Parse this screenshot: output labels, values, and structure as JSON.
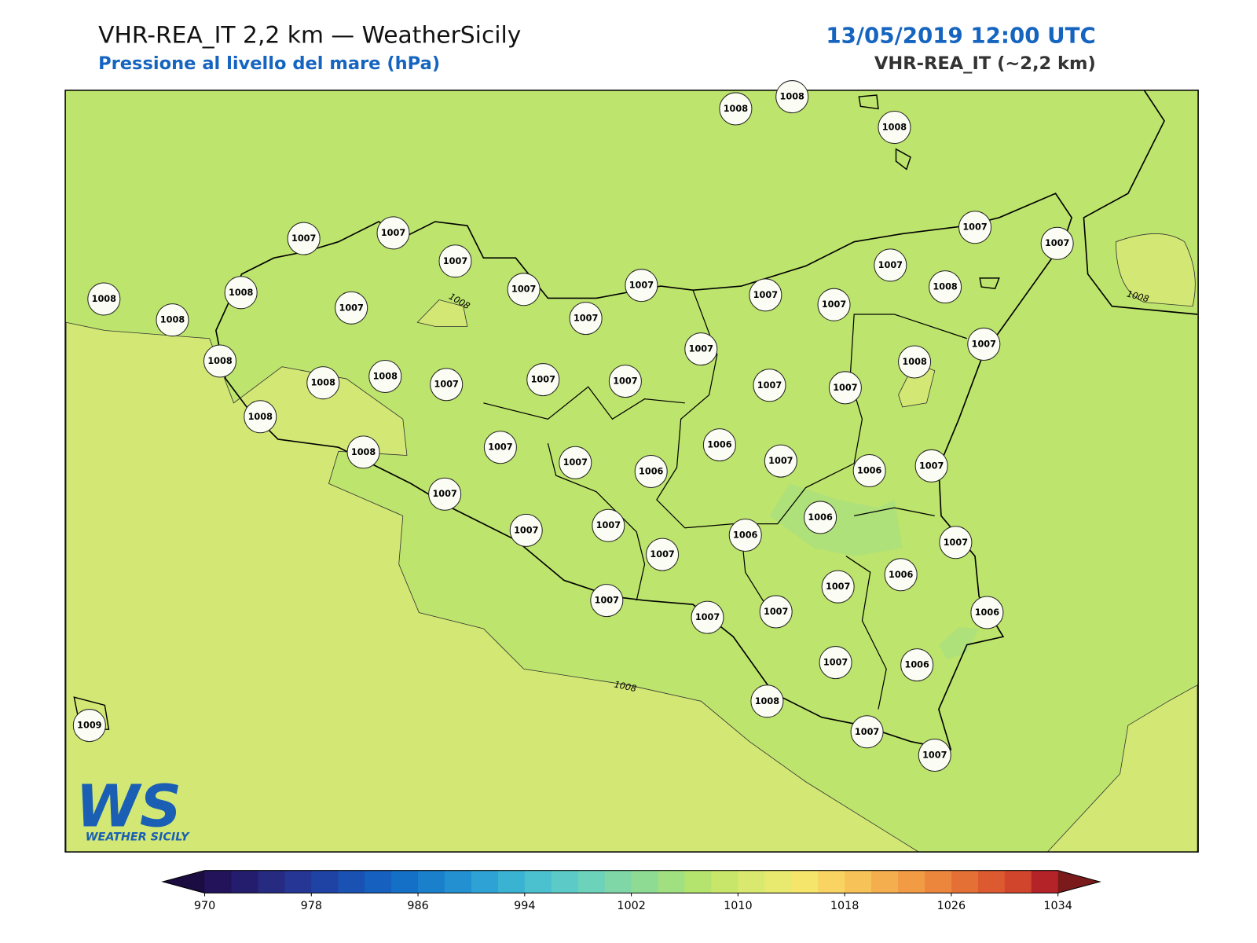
{
  "header": {
    "title": "VHR-REA_IT 2,2 km — WeatherSicily",
    "subtitle": "Pressione al livello del mare (hPa)",
    "date": "13/05/2019 12:00 UTC",
    "model": "VHR-REA_IT (~2,2 km)"
  },
  "logo": {
    "mark": "WS",
    "name": "WEATHER SICILY"
  },
  "stations": [
    1008,
    1008,
    1008,
    1007,
    1007,
    1007,
    1008,
    1008,
    1008,
    1007,
    1007,
    1007,
    1007,
    1007,
    1007,
    1007,
    1008,
    1007,
    1007,
    1007,
    1008,
    1007,
    1007,
    1007,
    1008,
    1008,
    1008,
    1007,
    1007,
    1007,
    1008,
    1008,
    1007,
    1007,
    1006,
    1006,
    1007,
    1006,
    1007,
    1007,
    1007,
    1007,
    1006,
    1006,
    1007,
    1007,
    1006,
    1007,
    1007,
    1007,
    1007,
    1006,
    1007,
    1006,
    1008,
    1007,
    1007,
    1009
  ],
  "contour_labels": [
    1008,
    1008,
    1008
  ],
  "colorbar": {
    "lim": [
      970,
      1034
    ],
    "ticks": [
      970,
      978,
      986,
      994,
      1002,
      1010,
      1018,
      1026,
      1034
    ],
    "extend_colors": [
      "#1b0c41",
      "#7a1a1a"
    ],
    "colors": [
      "#22135a",
      "#241d6e",
      "#262a80",
      "#253694",
      "#1f43a5",
      "#1a52b4",
      "#1660bf",
      "#146fc6",
      "#1a80cc",
      "#2390d1",
      "#2ea2d4",
      "#3ab2d2",
      "#4bc0ce",
      "#5ccac6",
      "#6cd2ba",
      "#7fd7a8",
      "#8edb94",
      "#a1e080",
      "#b5e46e",
      "#c8e66a",
      "#d9e86e",
      "#e8ea70",
      "#f5e56a",
      "#f9d462",
      "#f7c257",
      "#f4ae4e",
      "#f19b45",
      "#ec863d",
      "#e57036",
      "#dd5a31",
      "#d1452d",
      "#b32328"
    ]
  }
}
